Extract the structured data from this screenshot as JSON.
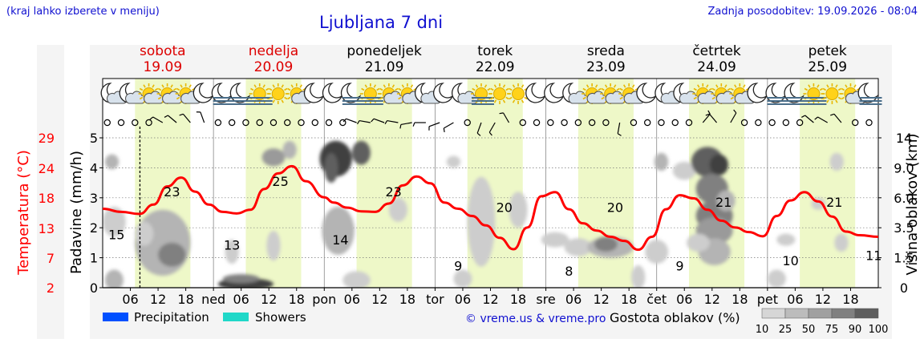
{
  "header": {
    "hint": "(kraj lahko izberete v meniju)",
    "title": "Ljubljana 7 dni",
    "updated": "Zadnja posodobitev: 19.09.2026 - 08:04"
  },
  "days": [
    {
      "name": "sobota",
      "date": "19.09",
      "weekend": true
    },
    {
      "name": "nedelja",
      "date": "20.09",
      "weekend": true
    },
    {
      "name": "ponedeljek",
      "date": "21.09",
      "weekend": false
    },
    {
      "name": "torek",
      "date": "22.09",
      "weekend": false
    },
    {
      "name": "sreda",
      "date": "23.09",
      "weekend": false
    },
    {
      "name": "četrtek",
      "date": "24.09",
      "weekend": false
    },
    {
      "name": "petek",
      "date": "25.09",
      "weekend": false
    }
  ],
  "weather_icons": [
    [
      "moon-cloud-icon",
      "moon-cloud-icon",
      "sun-cloud-icon",
      "sun-cloud-icon",
      "sun-cloud-icon",
      "moon-icon"
    ],
    [
      "moon-fog-icon",
      "moon-fog-icon",
      "sun-fog-icon",
      "sun-icon",
      "sun-cloud-icon",
      "moon-icon"
    ],
    [
      "moon-icon",
      "moon-fog-icon",
      "sun-fog-icon",
      "sun-cloud-icon",
      "sun-cloud-icon",
      "moon-cloud-icon"
    ],
    [
      "moon-icon",
      "moon-cloud-icon",
      "sun-fog-icon",
      "sun-icon",
      "sun-icon",
      "moon-icon"
    ],
    [
      "moon-icon",
      "moon-cloud-icon",
      "sun-cloud-icon",
      "sun-cloud-icon",
      "sun-cloud-icon",
      "moon-icon"
    ],
    [
      "moon-cloud-icon",
      "moon-cloud-icon",
      "sun-cloud-icon",
      "sun-cloud-icon",
      "sun-cloud-icon",
      "moon-icon"
    ],
    [
      "moon-fog-icon",
      "moon-fog-icon",
      "sun-fog-icon",
      "sun-icon",
      "sun-cloud-icon",
      "moon-fog-icon"
    ]
  ],
  "colors": {
    "temperature": "#ff0000",
    "weekend": "#dd0000",
    "precipitation": "#0050ff",
    "showers": "#20d8c8",
    "daylight": "#eef8c8",
    "link": "#1010d0"
  },
  "chart_data": {
    "type": "line",
    "x_unit": "hours from 19.09 00:00",
    "xlim": [
      0,
      168
    ],
    "x_tick_labels": [
      "06",
      "12",
      "18",
      "ned",
      "06",
      "12",
      "18",
      "pon",
      "06",
      "12",
      "18",
      "tor",
      "06",
      "12",
      "18",
      "sre",
      "06",
      "12",
      "18",
      "čet",
      "06",
      "12",
      "18",
      "pet",
      "06",
      "12",
      "18"
    ],
    "current_time": 8.07,
    "daylight_hours": [
      7,
      19
    ],
    "series": [
      {
        "name": "Temperatura (°C)",
        "x": [
          0,
          4,
          8,
          11,
          14,
          17,
          20,
          23,
          26,
          29,
          32,
          35,
          38,
          41,
          44,
          48,
          50,
          53,
          56,
          59,
          62,
          65,
          68,
          71,
          74,
          77,
          80,
          83,
          86,
          89,
          92,
          95,
          98,
          101,
          104,
          107,
          110,
          113,
          116,
          119,
          122,
          125,
          128,
          131,
          134,
          137,
          140,
          143,
          146,
          149,
          152,
          155,
          158,
          161,
          164,
          168
        ],
        "values": [
          17.2,
          16.6,
          16.2,
          18.0,
          21.5,
          23.2,
          20.5,
          18.0,
          16.6,
          16.3,
          17.0,
          21.0,
          24.0,
          25.4,
          22.5,
          19.4,
          18.4,
          17.4,
          16.7,
          16.6,
          18.2,
          21.7,
          23.4,
          22.1,
          18.4,
          17.2,
          15.8,
          14.0,
          11.6,
          9.4,
          13.6,
          19.6,
          20.4,
          17.1,
          14.4,
          13.0,
          11.8,
          11.0,
          9.3,
          11.8,
          17.1,
          19.8,
          19.2,
          17.0,
          14.9,
          13.6,
          12.7,
          11.9,
          15.8,
          18.8,
          20.4,
          18.6,
          15.7,
          12.8,
          12.1,
          11.8
        ]
      }
    ],
    "labels": [
      {
        "x": 3,
        "value": 15
      },
      {
        "x": 15,
        "value": 23
      },
      {
        "x": 28,
        "value": 13
      },
      {
        "x": 38.5,
        "value": 25
      },
      {
        "x": 51.5,
        "value": 14
      },
      {
        "x": 63,
        "value": 23
      },
      {
        "x": 77,
        "value": 9
      },
      {
        "x": 87,
        "value": 20
      },
      {
        "x": 101,
        "value": 8
      },
      {
        "x": 111,
        "value": 20
      },
      {
        "x": 125,
        "value": 9
      },
      {
        "x": 134.5,
        "value": 21
      },
      {
        "x": 149,
        "value": 10
      },
      {
        "x": 158.5,
        "value": 21
      },
      {
        "x": 167,
        "value": 11
      }
    ],
    "y_left_precip": {
      "label": "Padavine (mm/h)",
      "ticks": [
        "0",
        "1",
        "2",
        "3",
        "4",
        "5"
      ],
      "ylim": [
        0,
        5
      ]
    },
    "y_left_temp": {
      "label": "Temperatura (°C)",
      "ticks": [
        "2",
        "7",
        "13",
        "18",
        "24",
        "29"
      ]
    },
    "y_right": {
      "label": "Višina oblakov (km)",
      "ticks": [
        "0",
        "1.5",
        "3.5",
        "6.0",
        "9.0",
        "14"
      ]
    },
    "cloud_blobs": [
      {
        "x": 2,
        "y": 4.2,
        "rx": 1.5,
        "ry": 0.25,
        "density": 40
      },
      {
        "x": 2.5,
        "y": 2.2,
        "rx": 2.5,
        "ry": 0.5,
        "density": 25
      },
      {
        "x": 2.5,
        "y": 0.25,
        "rx": 2,
        "ry": 0.35,
        "density": 40
      },
      {
        "x": 13,
        "y": 1.5,
        "rx": 6,
        "ry": 1.1,
        "density": 40
      },
      {
        "x": 15,
        "y": 1.1,
        "rx": 3,
        "ry": 0.4,
        "density": 60
      },
      {
        "x": 9,
        "y": 1.8,
        "rx": 2,
        "ry": 0.4,
        "density": 25
      },
      {
        "x": 31,
        "y": 0.12,
        "rx": 6,
        "ry": 0.2,
        "density": 90
      },
      {
        "x": 30,
        "y": 0.3,
        "rx": 4,
        "ry": 0.15,
        "density": 60
      },
      {
        "x": 28,
        "y": 1.2,
        "rx": 1.5,
        "ry": 0.4,
        "density": 25
      },
      {
        "x": 37,
        "y": 4.35,
        "rx": 2.5,
        "ry": 0.3,
        "density": 50
      },
      {
        "x": 40.5,
        "y": 4.6,
        "rx": 1.5,
        "ry": 0.3,
        "density": 40
      },
      {
        "x": 37,
        "y": 1.4,
        "rx": 1.5,
        "ry": 0.5,
        "density": 25
      },
      {
        "x": 50.5,
        "y": 4.3,
        "rx": 3.5,
        "ry": 0.6,
        "density": 90
      },
      {
        "x": 49.5,
        "y": 4.0,
        "rx": 1.5,
        "ry": 0.5,
        "density": 75
      },
      {
        "x": 56,
        "y": 4.5,
        "rx": 2,
        "ry": 0.4,
        "density": 75
      },
      {
        "x": 52,
        "y": 1.95,
        "rx": 2.5,
        "ry": 0.45,
        "density": 75
      },
      {
        "x": 51,
        "y": 1.9,
        "rx": 3.5,
        "ry": 0.8,
        "density": 40
      },
      {
        "x": 64,
        "y": 2.6,
        "rx": 2,
        "ry": 0.4,
        "density": 25
      },
      {
        "x": 55,
        "y": 0.25,
        "rx": 3,
        "ry": 0.3,
        "density": 25
      },
      {
        "x": 76,
        "y": 4.2,
        "rx": 1.5,
        "ry": 0.2,
        "density": 25
      },
      {
        "x": 82,
        "y": 2.2,
        "rx": 3,
        "ry": 1.5,
        "density": 25
      },
      {
        "x": 90,
        "y": 2.6,
        "rx": 2,
        "ry": 0.6,
        "density": 25
      },
      {
        "x": 78,
        "y": 0.3,
        "rx": 2,
        "ry": 0.3,
        "density": 25
      },
      {
        "x": 98,
        "y": 1.6,
        "rx": 3,
        "ry": 0.25,
        "density": 25
      },
      {
        "x": 103,
        "y": 1.35,
        "rx": 3,
        "ry": 0.3,
        "density": 25
      },
      {
        "x": 110,
        "y": 1.35,
        "rx": 5,
        "ry": 0.35,
        "density": 40
      },
      {
        "x": 109,
        "y": 1.45,
        "rx": 2.5,
        "ry": 0.25,
        "density": 60
      },
      {
        "x": 116,
        "y": 0.35,
        "rx": 1.5,
        "ry": 0.4,
        "density": 25
      },
      {
        "x": 120,
        "y": 1.2,
        "rx": 2.5,
        "ry": 0.4,
        "density": 25
      },
      {
        "x": 121,
        "y": 4.2,
        "rx": 1.5,
        "ry": 0.3,
        "density": 40
      },
      {
        "x": 126,
        "y": 3.9,
        "rx": 2.5,
        "ry": 0.3,
        "density": 25
      },
      {
        "x": 131,
        "y": 4.2,
        "rx": 3.5,
        "ry": 0.5,
        "density": 75
      },
      {
        "x": 133.5,
        "y": 4.1,
        "rx": 2,
        "ry": 0.35,
        "density": 90
      },
      {
        "x": 132,
        "y": 3.3,
        "rx": 3.5,
        "ry": 0.5,
        "density": 60
      },
      {
        "x": 132.5,
        "y": 2.4,
        "rx": 4,
        "ry": 0.5,
        "density": 60
      },
      {
        "x": 132.5,
        "y": 1.9,
        "rx": 4,
        "ry": 0.45,
        "density": 50
      },
      {
        "x": 132.5,
        "y": 1.2,
        "rx": 3.5,
        "ry": 0.45,
        "density": 40
      },
      {
        "x": 129,
        "y": 1.5,
        "rx": 2.5,
        "ry": 0.3,
        "density": 25
      },
      {
        "x": 135,
        "y": 2.9,
        "rx": 2,
        "ry": 0.35,
        "density": 40
      },
      {
        "x": 148,
        "y": 1.6,
        "rx": 2,
        "ry": 0.2,
        "density": 25
      },
      {
        "x": 146,
        "y": 0.3,
        "rx": 2,
        "ry": 0.3,
        "density": 25
      },
      {
        "x": 155,
        "y": 2.8,
        "rx": 1.5,
        "ry": 0.2,
        "density": 25
      },
      {
        "x": 159,
        "y": 4.2,
        "rx": 1.5,
        "ry": 0.3,
        "density": 25
      },
      {
        "x": 160,
        "y": 1.5,
        "rx": 1.5,
        "ry": 0.3,
        "density": 25
      }
    ],
    "wind": [
      {
        "x": 1,
        "dir": 0,
        "speed": 0
      },
      {
        "x": 4,
        "dir": 0,
        "speed": 0
      },
      {
        "x": 7,
        "dir": 0,
        "speed": 0
      },
      {
        "x": 10,
        "dir": 0,
        "speed": 0
      },
      {
        "x": 13,
        "dir": 300,
        "speed": 1
      },
      {
        "x": 16,
        "dir": 310,
        "speed": 1
      },
      {
        "x": 19,
        "dir": 320,
        "speed": 1
      },
      {
        "x": 22,
        "dir": 340,
        "speed": 1
      },
      {
        "x": 25,
        "dir": 0,
        "speed": 0
      },
      {
        "x": 28,
        "dir": 0,
        "speed": 0
      },
      {
        "x": 31,
        "dir": 0,
        "speed": 0
      },
      {
        "x": 34,
        "dir": 0,
        "speed": 0
      },
      {
        "x": 37,
        "dir": 0,
        "speed": 0
      },
      {
        "x": 40,
        "dir": 0,
        "speed": 0
      },
      {
        "x": 43,
        "dir": 0,
        "speed": 0
      },
      {
        "x": 46,
        "dir": 0,
        "speed": 0
      },
      {
        "x": 49,
        "dir": 0,
        "speed": 0
      },
      {
        "x": 52,
        "dir": 0,
        "speed": 0
      },
      {
        "x": 55,
        "dir": 290,
        "speed": 1
      },
      {
        "x": 58,
        "dir": 280,
        "speed": 1
      },
      {
        "x": 61,
        "dir": 290,
        "speed": 1
      },
      {
        "x": 64,
        "dir": 280,
        "speed": 1
      },
      {
        "x": 67,
        "dir": 260,
        "speed": 1
      },
      {
        "x": 70,
        "dir": 270,
        "speed": 1
      },
      {
        "x": 73,
        "dir": 250,
        "speed": 1
      },
      {
        "x": 76,
        "dir": 240,
        "speed": 1
      },
      {
        "x": 79,
        "dir": 0,
        "speed": 0
      },
      {
        "x": 82,
        "dir": 200,
        "speed": 1
      },
      {
        "x": 85,
        "dir": 210,
        "speed": 1
      },
      {
        "x": 88,
        "dir": 330,
        "speed": 1
      },
      {
        "x": 91,
        "dir": 0,
        "speed": 0
      },
      {
        "x": 94,
        "dir": 0,
        "speed": 0
      },
      {
        "x": 97,
        "dir": 0,
        "speed": 0
      },
      {
        "x": 100,
        "dir": 0,
        "speed": 0
      },
      {
        "x": 103,
        "dir": 0,
        "speed": 0
      },
      {
        "x": 106,
        "dir": 0,
        "speed": 0
      },
      {
        "x": 109,
        "dir": 0,
        "speed": 0
      },
      {
        "x": 112,
        "dir": 190,
        "speed": 1
      },
      {
        "x": 115,
        "dir": 0,
        "speed": 0
      },
      {
        "x": 118,
        "dir": 0,
        "speed": 0
      },
      {
        "x": 121,
        "dir": 0,
        "speed": 0
      },
      {
        "x": 124,
        "dir": 0,
        "speed": 0
      },
      {
        "x": 127,
        "dir": 0,
        "speed": 0
      },
      {
        "x": 130,
        "dir": 40,
        "speed": 1
      },
      {
        "x": 133,
        "dir": 320,
        "speed": 1
      },
      {
        "x": 136,
        "dir": 30,
        "speed": 1
      },
      {
        "x": 139,
        "dir": 0,
        "speed": 0
      },
      {
        "x": 142,
        "dir": 0,
        "speed": 0
      },
      {
        "x": 145,
        "dir": 0,
        "speed": 0
      },
      {
        "x": 148,
        "dir": 0,
        "speed": 0
      },
      {
        "x": 151,
        "dir": 0,
        "speed": 0
      },
      {
        "x": 154,
        "dir": 310,
        "speed": 1
      },
      {
        "x": 157,
        "dir": 300,
        "speed": 1
      },
      {
        "x": 160,
        "dir": 320,
        "speed": 1
      },
      {
        "x": 163,
        "dir": 0,
        "speed": 0
      },
      {
        "x": 166,
        "dir": 0,
        "speed": 0
      }
    ],
    "legend": {
      "precipitation": "Precipitation",
      "showers": "Showers",
      "credit": "© vreme.us & vreme.pro",
      "cloud_density_title": "Gostota oblakov (%)",
      "cloud_density_levels": [
        "10",
        "25",
        "50",
        "75",
        "90",
        "100"
      ]
    }
  }
}
